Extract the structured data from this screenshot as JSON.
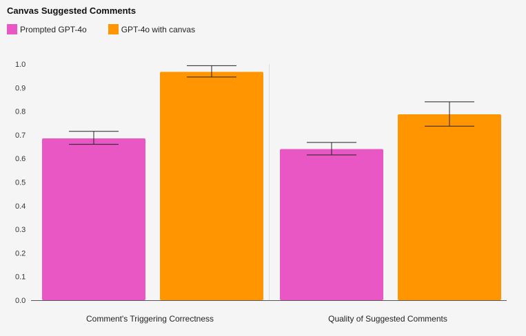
{
  "chart_data": {
    "type": "bar",
    "title": "Canvas Suggested Comments",
    "categories": [
      "Comment's Triggering Correctness",
      "Quality of Suggested Comments"
    ],
    "series": [
      {
        "name": "Prompted GPT-4o",
        "color": "#e857c4",
        "values": [
          0.685,
          0.64
        ],
        "error_low": [
          0.66,
          0.615
        ],
        "error_high": [
          0.715,
          0.668
        ]
      },
      {
        "name": "GPT-4o with canvas",
        "color": "#ff9500",
        "values": [
          0.967,
          0.787
        ],
        "error_low": [
          0.945,
          0.737
        ],
        "error_high": [
          0.993,
          0.84
        ]
      }
    ],
    "ylim": [
      0,
      1.0
    ],
    "yticks": [
      "0.0",
      "0.1",
      "0.2",
      "0.3",
      "0.4",
      "0.5",
      "0.6",
      "0.7",
      "0.8",
      "0.9",
      "1.0"
    ],
    "grid": false,
    "legend_position": "top-left"
  }
}
